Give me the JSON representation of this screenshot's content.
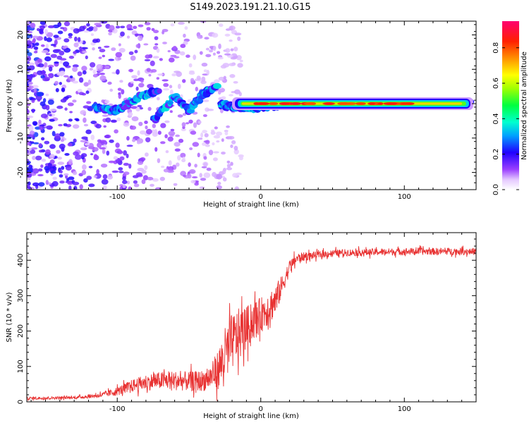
{
  "title": "S149.2023.191.21.10.G15",
  "chart_data": [
    {
      "type": "heatmap",
      "xlabel": "Height of straight line (km)",
      "ylabel": "Frequency (Hz)",
      "xlim": [
        -163,
        150
      ],
      "ylim": [
        -25,
        24
      ],
      "xticks": [
        -100,
        0,
        100
      ],
      "yticks": [
        -20,
        -10,
        0,
        10,
        20
      ],
      "colorbar": {
        "label": "Normalized spectral amplitude",
        "range": [
          0.0,
          0.95
        ],
        "ticks": [
          0.0,
          0.2,
          0.4,
          0.6,
          0.8
        ],
        "tick_labels": [
          "0.0",
          "0.2",
          "0.4",
          "0.6",
          "0.8"
        ],
        "colormap": [
          "#ffffff",
          "#f0d8ff",
          "#c890ff",
          "#8a2be2",
          "#5500ff",
          "#0000ff",
          "#00c8ff",
          "#00ff80",
          "#80ff00",
          "#ffff00",
          "#ff8000",
          "#ff0000",
          "#ff0080"
        ]
      },
      "ridge": {
        "segments": [
          {
            "x": [
              -115,
              -100,
              -85,
              -70
            ],
            "y": [
              -1,
              -2,
              2,
              4
            ]
          },
          {
            "x": [
              -75,
              -60,
              -50,
              -40,
              -30
            ],
            "y": [
              -5,
              2,
              -2,
              3,
              5
            ]
          },
          {
            "x": [
              -28,
              -20,
              -10,
              0,
              10,
              20,
              40,
              60,
              80,
              100,
              120,
              148
            ],
            "y": [
              0,
              -1,
              -1,
              -1,
              -0.5,
              0,
              0,
              0,
              0,
              0,
              0,
              0
            ]
          }
        ],
        "strong_band": {
          "x_range": [
            -20,
            148
          ],
          "y": 0,
          "amplitude": 0.9
        }
      }
    },
    {
      "type": "line",
      "xlabel": "Height of straight line (km)",
      "ylabel": "SNR (10 * v/v)",
      "xlim": [
        -163,
        150
      ],
      "ylim": [
        0,
        478
      ],
      "xticks": [
        -100,
        0,
        100
      ],
      "yticks": [
        0,
        100,
        200,
        300,
        400
      ],
      "color": "#e83232",
      "envelope": {
        "x": [
          -163,
          -130,
          -120,
          -110,
          -100,
          -90,
          -80,
          -70,
          -60,
          -50,
          -40,
          -35,
          -30,
          -25,
          -20,
          -15,
          -10,
          -5,
          0,
          5,
          10,
          15,
          20,
          25,
          30,
          40,
          50,
          60,
          70,
          80,
          90,
          100,
          110,
          120,
          130,
          140,
          150
        ],
        "mean": [
          10,
          12,
          15,
          20,
          30,
          45,
          55,
          60,
          60,
          58,
          60,
          70,
          90,
          130,
          170,
          190,
          210,
          230,
          245,
          265,
          285,
          330,
          380,
          405,
          410,
          415,
          420,
          422,
          422,
          423,
          424,
          425,
          425,
          425,
          425,
          425,
          425
        ],
        "spread": [
          8,
          8,
          10,
          15,
          25,
          35,
          45,
          50,
          55,
          55,
          60,
          70,
          110,
          160,
          160,
          150,
          120,
          110,
          100,
          100,
          90,
          60,
          40,
          30,
          25,
          20,
          20,
          20,
          20,
          20,
          20,
          20,
          20,
          20,
          20,
          20,
          20
        ]
      }
    }
  ]
}
